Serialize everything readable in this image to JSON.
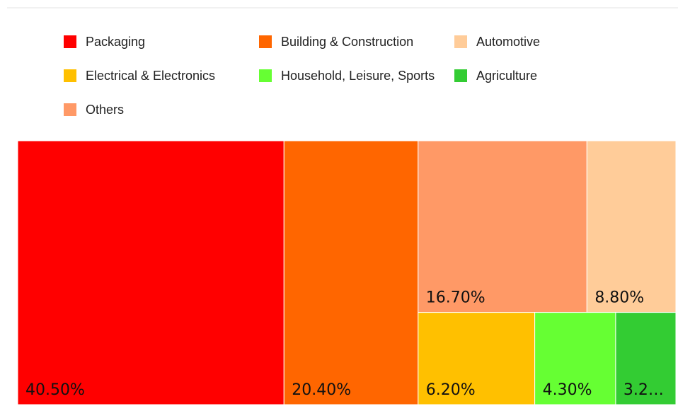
{
  "chart_data": {
    "type": "treemap",
    "categories": [
      "Packaging",
      "Building & Construction",
      "Automotive",
      "Electrical & Electronics",
      "Household, Leisure, Sports",
      "Agriculture",
      "Others"
    ],
    "values": [
      40.5,
      20.4,
      8.8,
      6.2,
      4.3,
      3.2,
      16.7
    ],
    "value_labels": [
      "40.50%",
      "20.40%",
      "8.80%",
      "6.20%",
      "4.30%",
      "3.2…",
      "16.70%"
    ],
    "colors": [
      "#ff0000",
      "#ff6600",
      "#ffcc99",
      "#ffc000",
      "#66ff33",
      "#33cc33",
      "#ff9966"
    ]
  }
}
